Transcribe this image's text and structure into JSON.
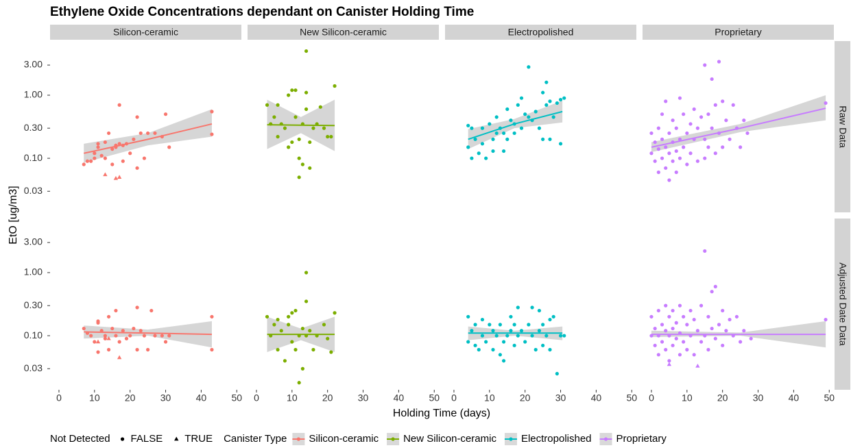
{
  "chart_data": {
    "type": "scatter",
    "title": "Ethylene Oxide Concentrations dependant on Canister Holding Time",
    "x_label": "Holding Time (days)",
    "y_label": "EtO [ug/m3]",
    "log_y": true,
    "xlim": [
      -2.5,
      51.3
    ],
    "ylim": [
      0.0139,
      7.2
    ],
    "xticks": [
      0,
      10,
      20,
      30,
      40,
      50
    ],
    "yticks": [
      {
        "value": 3,
        "label": "3.00"
      },
      {
        "value": 1,
        "label": "1.00"
      },
      {
        "value": 0.3,
        "label": "0.30"
      },
      {
        "value": 0.1,
        "label": "0.10"
      },
      {
        "value": 0.03,
        "label": "0.03"
      }
    ],
    "facet_rows": [
      "Raw Data",
      "Adjusted Date Data"
    ],
    "legend": {
      "shape_title": "Not Detected",
      "shape_labels": [
        "FALSE",
        "TRUE"
      ],
      "color_title": "Canister Type"
    },
    "series": [
      {
        "name": "Silicon-ceramic",
        "color": "#F8766D",
        "panels": [
          {
            "x": [
              7,
              8,
              9,
              10,
              10,
              11,
              11,
              12,
              13,
              13,
              14,
              15,
              15,
              16,
              16,
              17,
              17,
              18,
              18,
              19,
              20,
              21,
              22,
              22,
              23,
              24,
              25,
              27,
              29,
              30,
              31,
              43,
              43
            ],
            "y": [
              0.08,
              0.09,
              0.09,
              0.1,
              0.12,
              0.15,
              0.17,
              0.11,
              0.18,
              0.1,
              0.25,
              0.14,
              0.08,
              0.15,
              0.16,
              0.7,
              0.17,
              0.16,
              0.09,
              0.17,
              0.12,
              0.2,
              0.45,
              0.07,
              0.25,
              0.1,
              0.25,
              0.25,
              0.22,
              0.5,
              0.15,
              0.55,
              0.24
            ],
            "nd_x": [
              13,
              16,
              17
            ],
            "nd_y": [
              0.055,
              0.048,
              0.05
            ],
            "fit_x": [
              7,
              25,
              43
            ],
            "fit_y": [
              0.12,
              0.2,
              0.35
            ],
            "band_lower": [
              0.085,
              0.16,
              0.22
            ],
            "band_upper": [
              0.17,
              0.25,
              0.6
            ]
          },
          {
            "x": [
              7,
              8,
              9,
              10,
              11,
              11,
              11,
              12,
              13,
              13,
              14,
              14,
              15,
              16,
              16,
              17,
              18,
              19,
              20,
              21,
              22,
              22,
              23,
              24,
              25,
              26,
              27,
              29,
              30,
              31,
              43,
              43
            ],
            "y": [
              0.13,
              0.11,
              0.1,
              0.08,
              0.16,
              0.17,
              0.055,
              0.12,
              0.1,
              0.09,
              0.2,
              0.06,
              0.13,
              0.1,
              0.25,
              0.08,
              0.12,
              0.09,
              0.1,
              0.13,
              0.28,
              0.06,
              0.12,
              0.1,
              0.06,
              0.25,
              0.1,
              0.1,
              0.08,
              0.1,
              0.2,
              0.06
            ],
            "nd_x": [
              11,
              14,
              17
            ],
            "nd_y": [
              0.08,
              0.09,
              0.045
            ],
            "fit_x": [
              7,
              25,
              43
            ],
            "fit_y": [
              0.115,
              0.11,
              0.105
            ],
            "band_lower": [
              0.09,
              0.1,
              0.065
            ],
            "band_upper": [
              0.145,
              0.125,
              0.17
            ]
          }
        ]
      },
      {
        "name": "New Silicon-ceramic",
        "color": "#7CAE00",
        "panels": [
          {
            "x": [
              3,
              4,
              5,
              6,
              6,
              7,
              8,
              9,
              9,
              10,
              10,
              11,
              11,
              12,
              12,
              12,
              13,
              13,
              14,
              14,
              14,
              15,
              15,
              16,
              17,
              18,
              19,
              20,
              21,
              22
            ],
            "y": [
              0.7,
              0.35,
              0.45,
              0.7,
              0.22,
              0.35,
              0.3,
              1,
              0.15,
              1.2,
              0.18,
              1.2,
              0.45,
              0.1,
              0.2,
              0.05,
              0.08,
              0.35,
              5,
              0.6,
              1.1,
              0.07,
              0.18,
              0.3,
              0.35,
              0.65,
              0.3,
              0.22,
              0.22,
              1.4
            ],
            "fit_x": [
              3,
              12.5,
              22
            ],
            "fit_y": [
              0.34,
              0.335,
              0.33
            ],
            "band_lower": [
              0.14,
              0.25,
              0.13
            ],
            "band_upper": [
              0.85,
              0.45,
              0.85
            ]
          },
          {
            "x": [
              3,
              4,
              5,
              6,
              6,
              7,
              8,
              9,
              9,
              10,
              10,
              11,
              11,
              12,
              12,
              13,
              13,
              14,
              14,
              14,
              15,
              16,
              17,
              19,
              20,
              21,
              22
            ],
            "y": [
              0.2,
              0.1,
              0.15,
              0.06,
              0.18,
              0.12,
              0.04,
              0.15,
              0.2,
              0.23,
              0.08,
              0.06,
              0.25,
              0.1,
              0.018,
              0.03,
              0.13,
              0.35,
              1,
              0.1,
              0.12,
              0.06,
              0.1,
              0.15,
              0.09,
              0.055,
              0.23
            ],
            "fit_x": [
              3,
              12.5,
              22
            ],
            "fit_y": [
              0.105,
              0.105,
              0.105
            ],
            "band_lower": [
              0.055,
              0.085,
              0.055
            ],
            "band_upper": [
              0.2,
              0.13,
              0.2
            ]
          }
        ]
      },
      {
        "name": "Electropolished",
        "color": "#00BFC4",
        "panels": [
          {
            "x": [
              4,
              4,
              5,
              5,
              6,
              7,
              8,
              8,
              9,
              10,
              11,
              11,
              12,
              12,
              13,
              14,
              14,
              15,
              15,
              16,
              17,
              17,
              18,
              19,
              19,
              20,
              21,
              21,
              22,
              23,
              24,
              25,
              25,
              26,
              26,
              27,
              27,
              28,
              29,
              30,
              30,
              31
            ],
            "y": [
              0.15,
              0.33,
              0.1,
              0.3,
              0.2,
              0.12,
              0.3,
              0.17,
              0.1,
              0.35,
              0.2,
              0.13,
              0.25,
              0.45,
              0.3,
              0.25,
              0.13,
              0.6,
              0.2,
              0.4,
              0.35,
              0.25,
              0.7,
              0.9,
              0.3,
              0.5,
              2.8,
              0.45,
              0.4,
              0.55,
              0.3,
              1.1,
              0.2,
              1.6,
              0.7,
              0.8,
              0.2,
              0.45,
              0.75,
              0.17,
              0.85,
              0.9
            ],
            "fit_x": [
              4,
              17,
              30.5
            ],
            "fit_y": [
              0.2,
              0.35,
              0.55
            ],
            "band_lower": [
              0.14,
              0.3,
              0.37
            ],
            "band_upper": [
              0.29,
              0.42,
              0.82
            ]
          },
          {
            "x": [
              4,
              4,
              5,
              6,
              6,
              7,
              8,
              8,
              9,
              10,
              11,
              11,
              12,
              13,
              13,
              14,
              14,
              15,
              16,
              16,
              17,
              17,
              18,
              18,
              19,
              20,
              21,
              22,
              22,
              23,
              24,
              24,
              25,
              25,
              26,
              27,
              27,
              28,
              29,
              30,
              31
            ],
            "y": [
              0.2,
              0.08,
              0.12,
              0.15,
              0.07,
              0.06,
              0.1,
              0.18,
              0.08,
              0.15,
              0.12,
              0.06,
              0.1,
              0.05,
              0.15,
              0.08,
              0.04,
              0.1,
              0.2,
              0.12,
              0.07,
              0.15,
              0.28,
              0.1,
              0.12,
              0.08,
              0.15,
              0.28,
              0.1,
              0.06,
              0.25,
              0.12,
              0.15,
              0.07,
              0.1,
              0.18,
              0.06,
              0.2,
              0.025,
              0.1,
              0.1
            ],
            "fit_x": [
              4,
              17,
              30.5
            ],
            "fit_y": [
              0.11,
              0.11,
              0.11
            ],
            "band_lower": [
              0.085,
              0.1,
              0.085
            ],
            "band_upper": [
              0.14,
              0.12,
              0.14
            ]
          }
        ]
      },
      {
        "name": "Proprietary",
        "color": "#C77CFF",
        "panels": [
          {
            "x": [
              0,
              0,
              1,
              1,
              2,
              2,
              2,
              3,
              3,
              3,
              4,
              4,
              4,
              5,
              5,
              5,
              6,
              6,
              6,
              7,
              7,
              7,
              8,
              8,
              8,
              9,
              9,
              10,
              10,
              11,
              11,
              12,
              12,
              13,
              13,
              14,
              15,
              15,
              15,
              16,
              16,
              17,
              17,
              18,
              18,
              19,
              19,
              20,
              20,
              21,
              22,
              23,
              24,
              25,
              26,
              27,
              49
            ],
            "y": [
              0.25,
              0.12,
              0.18,
              0.09,
              0.3,
              0.14,
              0.06,
              0.5,
              0.2,
              0.1,
              0.8,
              0.15,
              0.07,
              0.25,
              0.12,
              0.045,
              0.4,
              0.18,
              0.09,
              0.3,
              0.13,
              0.06,
              0.9,
              0.2,
              0.1,
              0.5,
              0.15,
              0.25,
              0.08,
              0.35,
              0.12,
              0.6,
              0.2,
              0.3,
              0.09,
              0.45,
              3,
              0.2,
              0.1,
              0.5,
              0.15,
              1.8,
              0.3,
              0.7,
              0.12,
              3.4,
              0.25,
              0.8,
              0.15,
              0.4,
              0.2,
              0.7,
              0.3,
              0.15,
              0.4,
              0.25,
              0.75
            ],
            "fit_x": [
              0,
              25,
              49
            ],
            "fit_y": [
              0.15,
              0.3,
              0.62
            ],
            "band_lower": [
              0.125,
              0.26,
              0.4
            ],
            "band_upper": [
              0.18,
              0.35,
              1
            ]
          },
          {
            "x": [
              0,
              0,
              1,
              1,
              2,
              2,
              2,
              3,
              3,
              4,
              4,
              4,
              5,
              5,
              5,
              6,
              6,
              6,
              7,
              7,
              8,
              8,
              8,
              9,
              9,
              10,
              10,
              11,
              11,
              12,
              12,
              13,
              14,
              14,
              15,
              15,
              16,
              16,
              17,
              17,
              18,
              18,
              19,
              20,
              20,
              21,
              22,
              23,
              24,
              25,
              26,
              28,
              49
            ],
            "y": [
              0.2,
              0.1,
              0.13,
              0.07,
              0.25,
              0.1,
              0.05,
              0.15,
              0.08,
              0.3,
              0.12,
              0.06,
              0.2,
              0.1,
              0.04,
              0.25,
              0.13,
              0.07,
              0.16,
              0.09,
              0.3,
              0.11,
              0.05,
              0.2,
              0.08,
              0.15,
              0.06,
              0.25,
              0.1,
              0.18,
              0.05,
              0.12,
              0.3,
              0.08,
              2.2,
              0.1,
              0.2,
              0.06,
              0.5,
              0.13,
              0.6,
              0.09,
              0.15,
              0.25,
              0.07,
              0.12,
              0.18,
              0.1,
              0.2,
              0.08,
              0.12,
              0.09,
              0.18
            ],
            "nd_x": [
              5,
              13
            ],
            "nd_y": [
              0.035,
              0.033
            ],
            "fit_x": [
              0,
              25,
              49
            ],
            "fit_y": [
              0.105,
              0.105,
              0.105
            ],
            "band_lower": [
              0.095,
              0.1,
              0.065
            ],
            "band_upper": [
              0.12,
              0.112,
              0.17
            ]
          }
        ]
      }
    ]
  }
}
